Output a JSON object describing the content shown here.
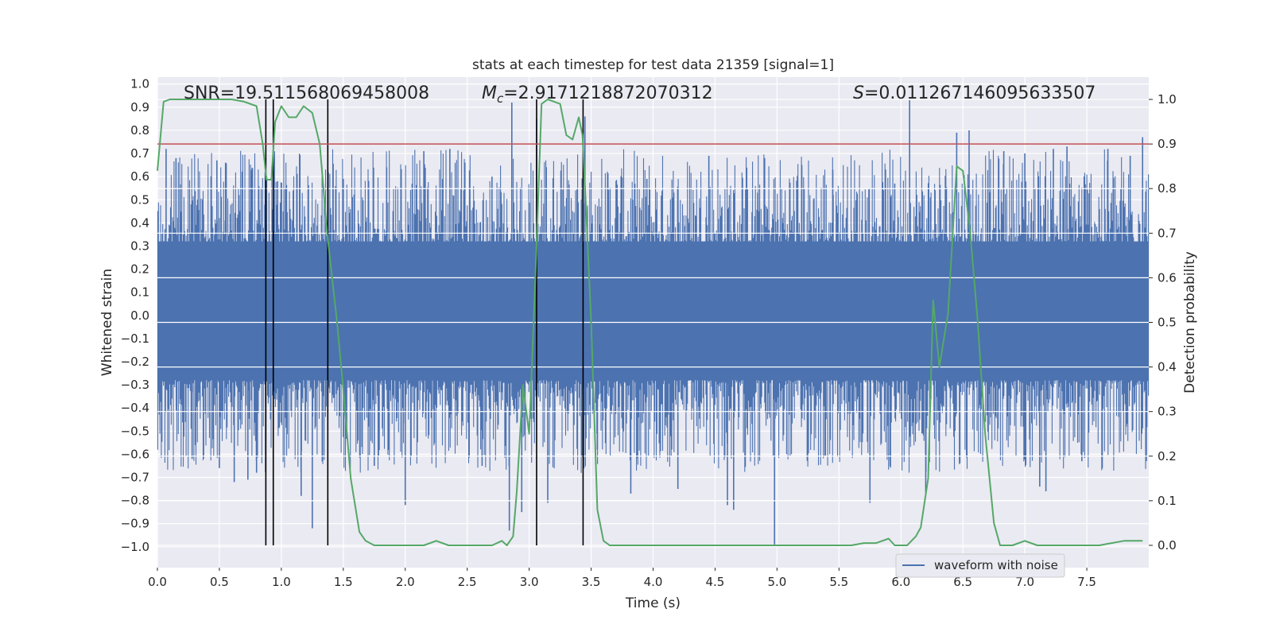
{
  "chart_data": {
    "type": "line",
    "title": "stats at each timestep for test data 21359 [signal=1]",
    "xlabel": "Time (s)",
    "ylabel": "Whitened strain",
    "y2label": "Detection probability",
    "xlim": [
      0.0,
      8.0
    ],
    "ylim": [
      -1.09,
      1.03
    ],
    "y2lim": [
      -0.05,
      1.05
    ],
    "xticks": [
      0.0,
      0.5,
      1.0,
      1.5,
      2.0,
      2.5,
      3.0,
      3.5,
      4.0,
      4.5,
      5.0,
      5.5,
      6.0,
      6.5,
      7.0,
      7.5
    ],
    "xtick_labels": [
      "0.0",
      "0.5",
      "1.0",
      "1.5",
      "2.0",
      "2.5",
      "3.0",
      "3.5",
      "4.0",
      "4.5",
      "5.0",
      "5.5",
      "6.0",
      "6.5",
      "7.0",
      "7.5"
    ],
    "yticks": [
      1.0,
      0.9,
      0.8,
      0.7,
      0.6,
      0.5,
      0.4,
      0.3,
      0.2,
      0.1,
      0.0,
      -0.1,
      -0.2,
      -0.3,
      -0.4,
      -0.5,
      -0.6,
      -0.7,
      -0.8,
      -0.9,
      -1.0
    ],
    "ytick_labels": [
      "1.0",
      "0.9",
      "0.8",
      "0.7",
      "0.6",
      "0.5",
      "0.4",
      "0.3",
      "0.2",
      "0.1",
      "0.0",
      "−0.1",
      "−0.2",
      "−0.3",
      "−0.4",
      "−0.5",
      "−0.6",
      "−0.7",
      "−0.8",
      "−0.9",
      "−1.0"
    ],
    "y2ticks": [
      1.0,
      0.9,
      0.8,
      0.7,
      0.6,
      0.5,
      0.4,
      0.3,
      0.2,
      0.1,
      0.0
    ],
    "y2tick_labels": [
      "1.0",
      "0.9",
      "0.8",
      "0.7",
      "0.6",
      "0.5",
      "0.4",
      "0.3",
      "0.2",
      "0.1",
      "0.0"
    ],
    "stats": {
      "snr_label": "SNR=19.511568069458008",
      "mc_symbol": "M",
      "mc_subscript": "c",
      "mc_value": "=2.9171218872070312",
      "s_symbol": "S",
      "s_value": "=0.011267146095633507"
    },
    "legend": {
      "label": "waveform with noise",
      "position": "lower-right"
    },
    "threshold": {
      "value": 0.9,
      "color": "#c44e52"
    },
    "markers_x": [
      0.875,
      0.935,
      1.375,
      3.06,
      3.435
    ],
    "waveform": {
      "name": "waveform with noise",
      "color": "#4c72b0",
      "band": [
        -0.3,
        0.35
      ],
      "dense_band": [
        -0.22,
        0.32
      ],
      "spikes": [
        {
          "t": 0.07,
          "v": 0.72
        },
        {
          "t": 0.15,
          "v": 0.68
        },
        {
          "t": 0.28,
          "v": -0.62
        },
        {
          "t": 0.48,
          "v": 0.67
        },
        {
          "t": 0.5,
          "v": -0.66
        },
        {
          "t": 0.55,
          "v": 0.66
        },
        {
          "t": 0.62,
          "v": -0.72
        },
        {
          "t": 0.73,
          "v": -0.71
        },
        {
          "t": 0.8,
          "v": -0.68
        },
        {
          "t": 0.87,
          "v": 0.62
        },
        {
          "t": 0.97,
          "v": 0.58
        },
        {
          "t": 1.16,
          "v": -0.78
        },
        {
          "t": 1.25,
          "v": -0.92
        },
        {
          "t": 1.5,
          "v": 0.59
        },
        {
          "t": 1.75,
          "v": -0.65
        },
        {
          "t": 1.85,
          "v": 0.64
        },
        {
          "t": 2.0,
          "v": -0.82
        },
        {
          "t": 2.15,
          "v": 0.71
        },
        {
          "t": 2.36,
          "v": 0.72
        },
        {
          "t": 2.62,
          "v": -0.65
        },
        {
          "t": 2.7,
          "v": 0.6
        },
        {
          "t": 2.84,
          "v": -0.93
        },
        {
          "t": 2.86,
          "v": 0.92
        },
        {
          "t": 2.94,
          "v": -0.85
        },
        {
          "t": 3.06,
          "v": 0.85
        },
        {
          "t": 3.15,
          "v": -0.81
        },
        {
          "t": 3.45,
          "v": 0.86
        },
        {
          "t": 3.55,
          "v": -0.58
        },
        {
          "t": 3.82,
          "v": -0.77
        },
        {
          "t": 3.95,
          "v": 0.59
        },
        {
          "t": 4.2,
          "v": -0.75
        },
        {
          "t": 4.45,
          "v": 0.69
        },
        {
          "t": 4.6,
          "v": -0.82
        },
        {
          "t": 4.65,
          "v": -0.84
        },
        {
          "t": 4.9,
          "v": 0.68
        },
        {
          "t": 4.98,
          "v": -0.99
        },
        {
          "t": 5.2,
          "v": 0.65
        },
        {
          "t": 5.45,
          "v": 0.63
        },
        {
          "t": 5.75,
          "v": -0.81
        },
        {
          "t": 5.95,
          "v": 0.57
        },
        {
          "t": 6.07,
          "v": 0.93
        },
        {
          "t": 6.2,
          "v": -0.77
        },
        {
          "t": 6.45,
          "v": 0.79
        },
        {
          "t": 6.55,
          "v": 0.8
        },
        {
          "t": 6.83,
          "v": 0.71
        },
        {
          "t": 7.0,
          "v": 0.7
        },
        {
          "t": 7.12,
          "v": -0.74
        },
        {
          "t": 7.17,
          "v": -0.76
        },
        {
          "t": 7.23,
          "v": 0.72
        },
        {
          "t": 7.34,
          "v": 0.73
        },
        {
          "t": 7.46,
          "v": -0.63
        },
        {
          "t": 7.67,
          "v": 0.72
        },
        {
          "t": 7.85,
          "v": 0.69
        },
        {
          "t": 7.95,
          "v": 0.77
        },
        {
          "t": 7.98,
          "v": -0.63
        }
      ]
    },
    "probability": {
      "name": "detection probability",
      "color": "#55a868",
      "t": [
        0.0,
        0.05,
        0.1,
        0.2,
        0.3,
        0.4,
        0.5,
        0.6,
        0.7,
        0.8,
        0.85,
        0.88,
        0.92,
        0.95,
        1.0,
        1.06,
        1.12,
        1.18,
        1.25,
        1.31,
        1.37,
        1.45,
        1.5,
        1.56,
        1.63,
        1.68,
        1.75,
        1.85,
        1.95,
        2.05,
        2.15,
        2.25,
        2.35,
        2.5,
        2.6,
        2.7,
        2.78,
        2.82,
        2.87,
        2.9,
        2.95,
        3.0,
        3.05,
        3.1,
        3.15,
        3.25,
        3.3,
        3.35,
        3.4,
        3.43,
        3.46,
        3.5,
        3.55,
        3.6,
        3.65,
        3.75,
        3.85,
        4.0,
        4.3,
        4.7,
        4.9,
        5.1,
        5.3,
        5.5,
        5.6,
        5.7,
        5.8,
        5.85,
        5.9,
        5.95,
        6.05,
        6.12,
        6.16,
        6.22,
        6.26,
        6.31,
        6.38,
        6.45,
        6.5,
        6.56,
        6.62,
        6.68,
        6.75,
        6.8,
        6.9,
        7.0,
        7.1,
        7.2,
        7.4,
        7.6,
        7.8,
        7.95
      ],
      "p": [
        0.84,
        0.995,
        1.0,
        1.0,
        1.0,
        1.0,
        1.0,
        1.0,
        0.995,
        0.985,
        0.9,
        0.82,
        0.82,
        0.95,
        0.985,
        0.96,
        0.96,
        0.985,
        0.97,
        0.9,
        0.7,
        0.5,
        0.35,
        0.15,
        0.03,
        0.01,
        0.0,
        0.0,
        0.0,
        0.0,
        0.0,
        0.01,
        0.0,
        0.0,
        0.0,
        0.0,
        0.01,
        0.0,
        0.02,
        0.12,
        0.36,
        0.25,
        0.6,
        0.99,
        1.0,
        0.99,
        0.92,
        0.91,
        0.96,
        0.92,
        0.75,
        0.5,
        0.08,
        0.01,
        0.0,
        0.0,
        0.0,
        0.0,
        0.0,
        0.0,
        0.0,
        0.0,
        0.0,
        0.0,
        0.0,
        0.005,
        0.005,
        0.01,
        0.015,
        0.0,
        0.0,
        0.02,
        0.04,
        0.15,
        0.55,
        0.4,
        0.52,
        0.85,
        0.84,
        0.7,
        0.5,
        0.25,
        0.05,
        0.0,
        0.0,
        0.01,
        0.0,
        0.0,
        0.0,
        0.0,
        0.01,
        0.01
      ]
    }
  }
}
